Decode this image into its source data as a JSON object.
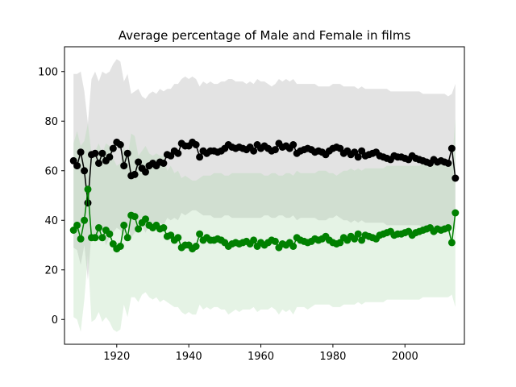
{
  "chart_data": {
    "type": "line",
    "title": "Average percentage of Male and Female in films",
    "xlabel": "",
    "ylabel": "",
    "xlim": [
      1905.5,
      2016.5
    ],
    "ylim": [
      -10,
      110
    ],
    "xticks": [
      1920,
      1940,
      1960,
      1980,
      2000
    ],
    "yticks": [
      0,
      20,
      40,
      60,
      80,
      100
    ],
    "grid": false,
    "x": [
      1908,
      1909,
      1910,
      1911,
      1912,
      1913,
      1914,
      1915,
      1916,
      1917,
      1918,
      1919,
      1920,
      1921,
      1922,
      1923,
      1924,
      1925,
      1926,
      1927,
      1928,
      1929,
      1930,
      1931,
      1932,
      1933,
      1934,
      1935,
      1936,
      1937,
      1938,
      1939,
      1940,
      1941,
      1942,
      1943,
      1944,
      1945,
      1946,
      1947,
      1948,
      1949,
      1950,
      1951,
      1952,
      1953,
      1954,
      1955,
      1956,
      1957,
      1958,
      1959,
      1960,
      1961,
      1962,
      1963,
      1964,
      1965,
      1966,
      1967,
      1968,
      1969,
      1970,
      1971,
      1972,
      1973,
      1974,
      1975,
      1976,
      1977,
      1978,
      1979,
      1980,
      1981,
      1982,
      1983,
      1984,
      1985,
      1986,
      1987,
      1988,
      1989,
      1990,
      1991,
      1992,
      1993,
      1994,
      1995,
      1996,
      1997,
      1998,
      1999,
      2000,
      2001,
      2002,
      2003,
      2004,
      2005,
      2006,
      2007,
      2008,
      2009,
      2010,
      2011,
      2012,
      2013,
      2014
    ],
    "series": [
      {
        "color": "#000000",
        "band_color": "#c0c0c0",
        "values": [
          64,
          62,
          67.5,
          60,
          47,
          66.5,
          67,
          63,
          67,
          64,
          65.5,
          69,
          71.5,
          70.5,
          62,
          67,
          58,
          58.5,
          63.5,
          61,
          59.5,
          62,
          63,
          62,
          63.5,
          63,
          66.5,
          66,
          68,
          67,
          71,
          70,
          70,
          71.5,
          70.5,
          65.5,
          68,
          67,
          68,
          68,
          67.5,
          68,
          69,
          70.5,
          69.5,
          69,
          69.5,
          69,
          68.5,
          69.5,
          68,
          70.5,
          69,
          70,
          69,
          68,
          68.5,
          71,
          69.5,
          70,
          69,
          70.5,
          67,
          68,
          68.5,
          69,
          68.5,
          67.5,
          68,
          67.5,
          66.5,
          68,
          69,
          69.5,
          69,
          67,
          68,
          66.5,
          67.5,
          65.5,
          68,
          66,
          66.5,
          67,
          67.5,
          66,
          65.5,
          65,
          64.5,
          66,
          65.5,
          65.5,
          65,
          64.5,
          66,
          65,
          64.5,
          64,
          63.5,
          63,
          64.5,
          63.5,
          64,
          63.5,
          63,
          69,
          57
        ],
        "band_low": [
          29,
          28,
          22,
          30,
          16,
          35,
          32,
          33,
          36,
          30,
          33,
          35,
          37,
          36,
          34,
          38,
          33,
          35,
          40,
          38,
          35,
          38,
          39,
          39,
          39,
          38,
          41,
          40,
          41,
          40,
          43,
          42,
          43,
          44,
          44,
          43,
          42,
          42,
          42,
          41,
          41,
          41,
          42,
          42,
          41,
          41,
          41,
          41,
          41,
          41,
          41,
          41,
          41,
          42,
          42,
          41,
          41,
          42,
          42,
          41,
          41,
          42,
          40,
          41,
          41,
          41,
          41,
          41,
          40,
          40,
          40,
          41,
          41,
          42,
          41,
          40,
          40,
          39,
          40,
          39,
          40,
          39,
          39,
          39,
          39,
          39,
          39,
          38,
          38,
          38,
          38,
          38,
          38,
          38,
          38,
          38,
          38,
          37,
          37,
          37,
          37,
          37,
          37,
          37,
          37,
          38,
          36
        ],
        "band_high": [
          99,
          99,
          100,
          92,
          79,
          97,
          100,
          96,
          100,
          99,
          100,
          103,
          105,
          104,
          96,
          99,
          91,
          92,
          93,
          90,
          89,
          91,
          92,
          91,
          93,
          92,
          93,
          93,
          95,
          95,
          97,
          98,
          97,
          98,
          97,
          94,
          96,
          95,
          96,
          95,
          95,
          96,
          96,
          97,
          97,
          96,
          96,
          96,
          95,
          96,
          95,
          97,
          96,
          96,
          95,
          94,
          95,
          97,
          96,
          97,
          96,
          97,
          95,
          95,
          95,
          95,
          95,
          95,
          94,
          94,
          94,
          94,
          95,
          95,
          95,
          94,
          94,
          94,
          94,
          93,
          94,
          93,
          93,
          93,
          93,
          93,
          93,
          93,
          92,
          92,
          92,
          92,
          92,
          92,
          92,
          92,
          92,
          91,
          91,
          91,
          91,
          91,
          91,
          91,
          90,
          91,
          95
        ]
      },
      {
        "color": "#008000",
        "band_color": "#a8d8a8",
        "values": [
          36,
          38,
          32.5,
          40,
          52.5,
          33,
          33,
          37,
          33,
          36,
          34.5,
          30.5,
          28.5,
          29.5,
          38,
          33,
          42,
          41.5,
          36.5,
          39,
          40.5,
          38,
          37,
          38,
          36.5,
          37,
          33.5,
          34,
          32,
          33,
          29,
          30,
          30,
          28.5,
          29.5,
          34.5,
          32,
          33,
          32,
          32,
          32.5,
          32,
          31,
          29.5,
          30.5,
          31,
          30.5,
          31,
          31.5,
          30.5,
          32,
          29.5,
          31,
          30,
          31,
          32,
          31.5,
          29,
          30.5,
          30,
          31,
          29.5,
          33,
          32,
          31.5,
          31,
          31.5,
          32.5,
          32,
          32.5,
          33.5,
          32,
          31,
          30.5,
          31,
          33,
          32,
          33.5,
          32.5,
          34.5,
          32,
          34,
          33.5,
          33,
          32.5,
          34,
          34.5,
          35,
          35.5,
          34,
          34.5,
          34.5,
          35,
          35.5,
          34,
          35,
          35.5,
          36,
          36.5,
          37,
          35.5,
          36.5,
          36,
          36.5,
          37,
          31,
          43
        ],
        "band_low": [
          1,
          0,
          -5,
          8,
          26,
          -1,
          0,
          3,
          -1,
          1,
          -1,
          -4,
          -5,
          -4,
          6,
          1,
          9,
          9,
          7,
          10,
          11,
          9,
          8,
          9,
          7,
          8,
          7,
          6,
          5,
          5,
          3,
          2,
          3,
          2,
          2,
          6,
          4,
          5,
          4,
          5,
          5,
          4,
          4,
          2,
          3,
          4,
          3,
          4,
          4,
          4,
          5,
          3,
          4,
          4,
          4,
          5,
          4,
          2,
          4,
          3,
          4,
          2,
          5,
          5,
          5,
          4,
          5,
          6,
          6,
          6,
          6,
          6,
          5,
          5,
          5,
          6,
          6,
          6,
          6,
          7,
          6,
          7,
          7,
          7,
          7,
          7,
          7,
          8,
          8,
          8,
          8,
          8,
          8,
          8,
          8,
          8,
          8,
          9,
          9,
          9,
          9,
          9,
          9,
          9,
          9,
          10,
          5
        ],
        "band_high": [
          71,
          76,
          70,
          72,
          79,
          67,
          68,
          71,
          67,
          71,
          70,
          65,
          62,
          63,
          70,
          65,
          75,
          74,
          66,
          68,
          70,
          67,
          66,
          67,
          66,
          66,
          60,
          62,
          59,
          60,
          57,
          58,
          57,
          56,
          56,
          57,
          58,
          58,
          58,
          59,
          59,
          59,
          58,
          58,
          59,
          59,
          59,
          59,
          59,
          59,
          59,
          59,
          59,
          58,
          58,
          59,
          59,
          58,
          58,
          59,
          59,
          58,
          60,
          59,
          59,
          59,
          59,
          59,
          60,
          60,
          60,
          59,
          59,
          58,
          59,
          60,
          60,
          61,
          60,
          61,
          60,
          61,
          61,
          61,
          61,
          61,
          61,
          62,
          62,
          62,
          62,
          62,
          62,
          62,
          62,
          62,
          62,
          63,
          63,
          63,
          63,
          63,
          63,
          63,
          63,
          62,
          81
        ]
      }
    ]
  }
}
